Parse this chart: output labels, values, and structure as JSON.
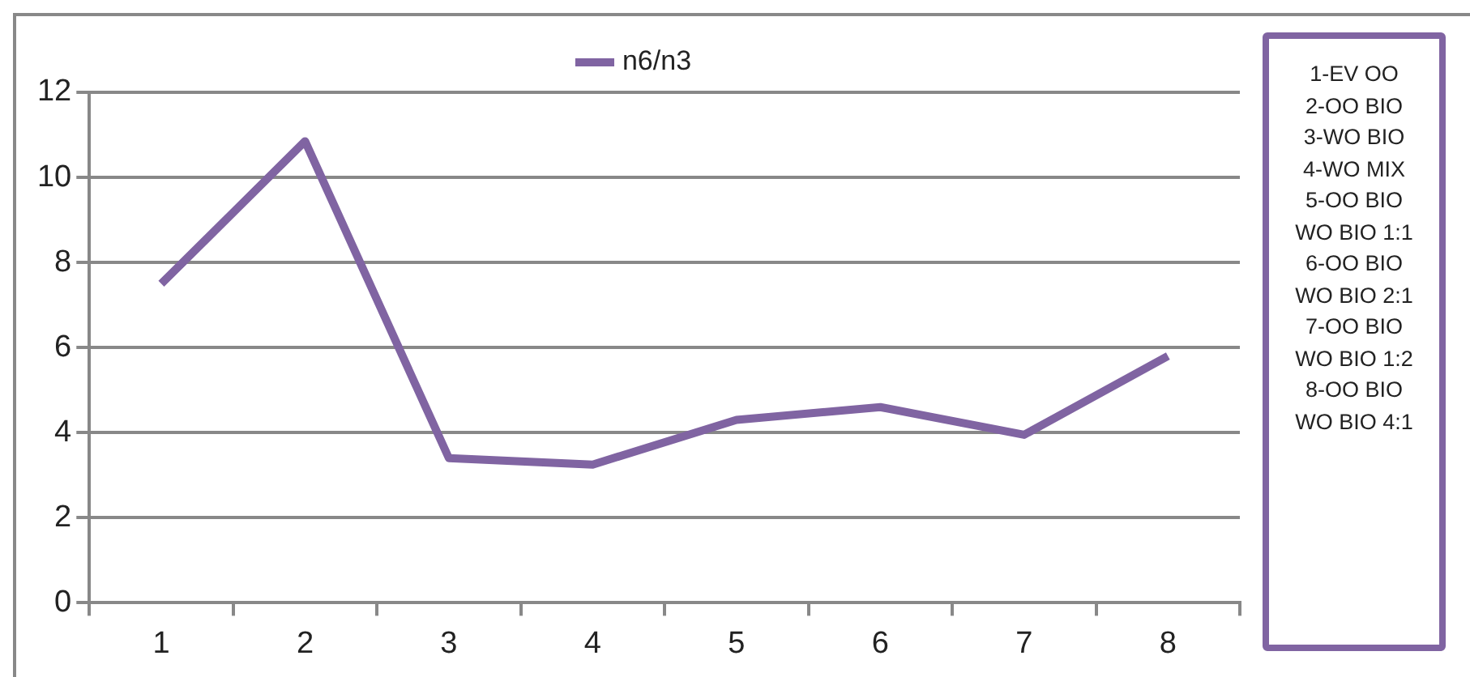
{
  "chart_data": {
    "type": "line",
    "categories": [
      "1",
      "2",
      "3",
      "4",
      "5",
      "6",
      "7",
      "8"
    ],
    "series": [
      {
        "name": "n6/n3",
        "color": "#8064a2",
        "values": [
          7.5,
          10.85,
          3.4,
          3.25,
          4.3,
          4.6,
          3.95,
          5.8
        ]
      }
    ],
    "ylim": [
      0,
      12
    ],
    "yticks": [
      0,
      2,
      4,
      6,
      8,
      10,
      12
    ],
    "grid": "y",
    "legend": "top",
    "marker": "none",
    "line_style": "solid",
    "annotations": [
      "1-EV OO",
      "2-OO BIO",
      "3-WO BIO",
      "4-WO MIX",
      "5-OO BIO WO BIO 1:1",
      "6-OO BIO WO BIO 2:1",
      "7-OO BIO WO BIO 1:2",
      "8-OO BIO WO BIO 4:1"
    ]
  }
}
